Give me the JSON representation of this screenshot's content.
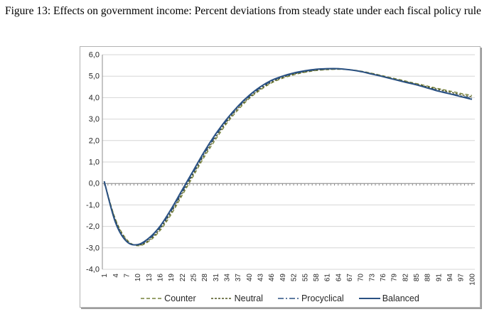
{
  "figure": {
    "caption": "Figure 13: Effects on government income: Percent deviations from steady state under each fiscal policy rule"
  },
  "chart_data": {
    "type": "line",
    "title": "",
    "xlabel": "",
    "ylabel": "",
    "ylim": [
      -4.0,
      6.0
    ],
    "grid": "horizontal",
    "legend_position": "bottom",
    "decimal_separator": ",",
    "y_ticks": [
      6,
      5,
      4,
      3,
      2,
      1,
      0,
      -1,
      -2,
      -3,
      -4
    ],
    "y_tick_labels": [
      "6,0",
      "5,0",
      "4,0",
      "3,0",
      "2,0",
      "1,0",
      "0,0",
      "-1,0",
      "-2,0",
      "-3,0",
      "-4,0"
    ],
    "x": [
      1,
      4,
      7,
      10,
      13,
      16,
      19,
      22,
      25,
      28,
      31,
      34,
      37,
      40,
      43,
      46,
      49,
      52,
      55,
      58,
      61,
      64,
      67,
      70,
      73,
      76,
      79,
      82,
      85,
      88,
      91,
      94,
      97,
      100
    ],
    "x_tick_labels": [
      "1",
      "4",
      "7",
      "10",
      "13",
      "16",
      "19",
      "22",
      "25",
      "28",
      "31",
      "34",
      "37",
      "40",
      "43",
      "46",
      "49",
      "52",
      "55",
      "58",
      "61",
      "64",
      "67",
      "70",
      "73",
      "76",
      "79",
      "82",
      "85",
      "88",
      "91",
      "94",
      "97",
      "100"
    ],
    "series": [
      {
        "name": "Counter",
        "line_style": "dashed",
        "color": "#77823C",
        "dash": "5 3",
        "stroke_width": 1.4,
        "values": [
          0.1,
          -1.65,
          -2.6,
          -2.9,
          -2.7,
          -2.2,
          -1.45,
          -0.55,
          0.35,
          1.25,
          2.05,
          2.8,
          3.42,
          3.95,
          4.35,
          4.68,
          4.9,
          5.06,
          5.18,
          5.26,
          5.3,
          5.32,
          5.3,
          5.24,
          5.14,
          5.02,
          4.9,
          4.78,
          4.66,
          4.54,
          4.42,
          4.31,
          4.2,
          4.1
        ]
      },
      {
        "name": "Neutral",
        "line_style": "dashed",
        "color": "#4E541F",
        "dash": "3 2",
        "stroke_width": 1.4,
        "values": [
          0.1,
          -1.7,
          -2.65,
          -2.88,
          -2.65,
          -2.12,
          -1.35,
          -0.45,
          0.45,
          1.35,
          2.15,
          2.88,
          3.5,
          4.0,
          4.4,
          4.72,
          4.94,
          5.1,
          5.2,
          5.28,
          5.32,
          5.33,
          5.3,
          5.23,
          5.12,
          5.0,
          4.87,
          4.75,
          4.63,
          4.5,
          4.38,
          4.26,
          4.14,
          4.03
        ]
      },
      {
        "name": "Procyclical",
        "line_style": "dash-dot",
        "color": "#2A5182",
        "dash": "8 3 2 3",
        "stroke_width": 1.4,
        "values": [
          0.1,
          -1.75,
          -2.68,
          -2.86,
          -2.6,
          -2.06,
          -1.28,
          -0.38,
          0.52,
          1.42,
          2.22,
          2.94,
          3.55,
          4.05,
          4.45,
          4.76,
          4.97,
          5.12,
          5.22,
          5.3,
          5.33,
          5.34,
          5.3,
          5.22,
          5.11,
          4.99,
          4.86,
          4.74,
          4.61,
          4.47,
          4.33,
          4.2,
          4.08,
          3.97
        ]
      },
      {
        "name": "Balanced",
        "line_style": "solid",
        "color": "#2A5182",
        "dash": "",
        "stroke_width": 2,
        "values": [
          0.1,
          -1.8,
          -2.7,
          -2.85,
          -2.55,
          -2.0,
          -1.2,
          -0.3,
          0.6,
          1.5,
          2.3,
          3.0,
          3.6,
          4.1,
          4.5,
          4.8,
          5.0,
          5.15,
          5.25,
          5.32,
          5.35,
          5.35,
          5.3,
          5.22,
          5.1,
          4.98,
          4.85,
          4.72,
          4.6,
          4.45,
          4.3,
          4.18,
          4.05,
          3.92
        ]
      }
    ],
    "colors": {
      "gridline": "#D6D6D6",
      "axis": "#8C8C8C",
      "tick_text": "#262626",
      "chart_border": "#B3B3B3",
      "chart_shadow": "#9E9E9E"
    }
  }
}
